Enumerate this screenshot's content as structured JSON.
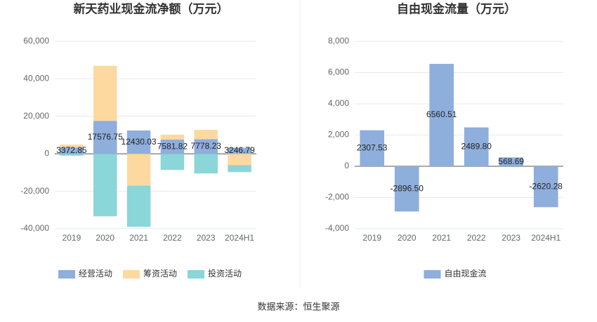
{
  "chart_data": [
    {
      "type": "bar",
      "stacked": true,
      "title": "新天药业现金流净额（万元）",
      "categories": [
        "2019",
        "2020",
        "2021",
        "2022",
        "2023",
        "2024H1"
      ],
      "series": [
        {
          "name": "经营活动",
          "color": "#8eaedc",
          "values": [
            3372.85,
            17576.75,
            12430.03,
            7581.82,
            7778.23,
            3246.79
          ],
          "labeled": true
        },
        {
          "name": "筹资活动",
          "color": "#fdd9a0",
          "values": [
            1500,
            29400,
            -17000,
            2600,
            5000,
            -6000
          ]
        },
        {
          "name": "投资活动",
          "color": "#8ad6d9",
          "values": [
            -1000,
            -33400,
            -22000,
            -8600,
            -10500,
            -3800
          ]
        }
      ],
      "ylim": [
        -40000,
        60000
      ],
      "yticks": [
        {
          "value": -40000,
          "label": "-40,000"
        },
        {
          "value": -20000,
          "label": "-20,000"
        },
        0,
        {
          "value": 20000,
          "label": "20,000"
        },
        {
          "value": 40000,
          "label": "40,000"
        },
        {
          "value": 60000,
          "label": "60,000"
        }
      ],
      "grid": true
    },
    {
      "type": "bar",
      "title": "自由现金流量（万元）",
      "categories": [
        "2019",
        "2020",
        "2021",
        "2022",
        "2023",
        "2024H1"
      ],
      "series": [
        {
          "name": "自由现金流",
          "color": "#8eaedc",
          "values": [
            2307.53,
            -2896.5,
            6560.51,
            2489.8,
            568.69,
            -2620.28
          ],
          "value_labels": [
            "2307.53",
            "-2896.50",
            "6560.51",
            "2489.80",
            "568.69",
            "-2620.28"
          ],
          "labeled": true
        }
      ],
      "ylim": [
        -4000,
        8000
      ],
      "yticks": [
        {
          "value": -4000,
          "label": "-4,000"
        },
        {
          "value": -2000,
          "label": "-2,000"
        },
        0,
        {
          "value": 2000,
          "label": "2,000"
        },
        {
          "value": 4000,
          "label": "4,000"
        },
        {
          "value": 6000,
          "label": "6,000"
        },
        {
          "value": 8000,
          "label": "8,000"
        }
      ],
      "grid": true
    }
  ],
  "source": "数据来源：恒生聚源"
}
